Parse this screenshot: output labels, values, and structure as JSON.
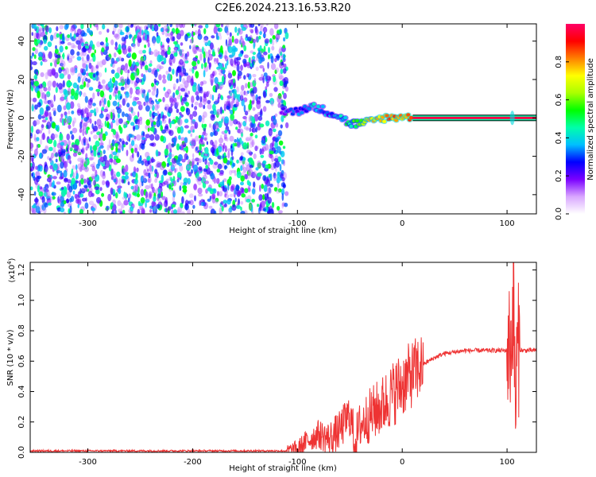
{
  "title": "C2E6.2024.213.16.53.R20",
  "chart_data": [
    {
      "type": "heatmap",
      "xlabel": "Height of straight line (km)",
      "ylabel": "Frequency (Hz)",
      "xlim": [
        -355,
        128
      ],
      "ylim": [
        -50,
        49
      ],
      "xticks": [
        -300,
        -200,
        -100,
        0,
        100
      ],
      "yticks": [
        -40,
        -20,
        0,
        20,
        40
      ],
      "colorbar": {
        "label": "Normalized spectral amplitude",
        "range": [
          0.0,
          1.0
        ],
        "ticks": [
          0.0,
          0.2,
          0.4,
          0.6,
          0.8
        ],
        "colors": [
          "#ffffff",
          "#d9a6ff",
          "#7a00ff",
          "#0000ff",
          "#00bfff",
          "#00ffaa",
          "#00ff00",
          "#aaff00",
          "#ffff00",
          "#ff8000",
          "#ff0000",
          "#ff0066"
        ]
      },
      "signal_trace": {
        "x": [
          -115,
          -100,
          -90,
          -80,
          -70,
          -60,
          -50,
          -40,
          -30,
          -20,
          -10,
          0,
          10,
          50,
          100,
          128
        ],
        "y": [
          4,
          3,
          6,
          5,
          3,
          1,
          -3,
          -3,
          -2,
          0,
          0,
          1,
          0,
          0,
          0,
          0
        ],
        "amplitude": [
          0.3,
          0.35,
          0.4,
          0.45,
          0.4,
          0.5,
          0.55,
          0.7,
          0.8,
          0.85,
          0.9,
          0.9,
          0.95,
          0.95,
          0.95,
          0.95
        ]
      },
      "noise_region": {
        "x_from": -355,
        "x_to": -110,
        "amplitude_range": [
          0.05,
          0.25
        ]
      }
    },
    {
      "type": "line",
      "xlabel": "Height of straight line (km)",
      "ylabel": "SNR (10 * v/v)",
      "y_multiplier": "(x10",
      "y_multiplier_exp": "4",
      "xlim": [
        -355,
        128
      ],
      "ylim": [
        0,
        1.25
      ],
      "xticks": [
        -300,
        -200,
        -100,
        0,
        100
      ],
      "yticks": [
        0.0,
        0.2,
        0.4,
        0.6,
        0.8,
        1.0,
        1.2
      ],
      "color": "#ee3333",
      "series": [
        {
          "x": [
            -355,
            -300,
            -250,
            -200,
            -150,
            -110,
            -100,
            -90,
            -80,
            -70,
            -60,
            -50,
            -45,
            -40,
            -30,
            -20,
            -10,
            0,
            10,
            20,
            30,
            40,
            60,
            80,
            100,
            104,
            106,
            108,
            110,
            115,
            128
          ],
          "y": [
            0.01,
            0.01,
            0.01,
            0.01,
            0.01,
            0.01,
            0.02,
            0.08,
            0.12,
            0.09,
            0.14,
            0.25,
            0.07,
            0.18,
            0.25,
            0.3,
            0.38,
            0.45,
            0.52,
            0.58,
            0.62,
            0.65,
            0.67,
            0.67,
            0.67,
            0.7,
            1.05,
            0.3,
            0.68,
            0.67,
            0.67
          ]
        }
      ]
    }
  ]
}
